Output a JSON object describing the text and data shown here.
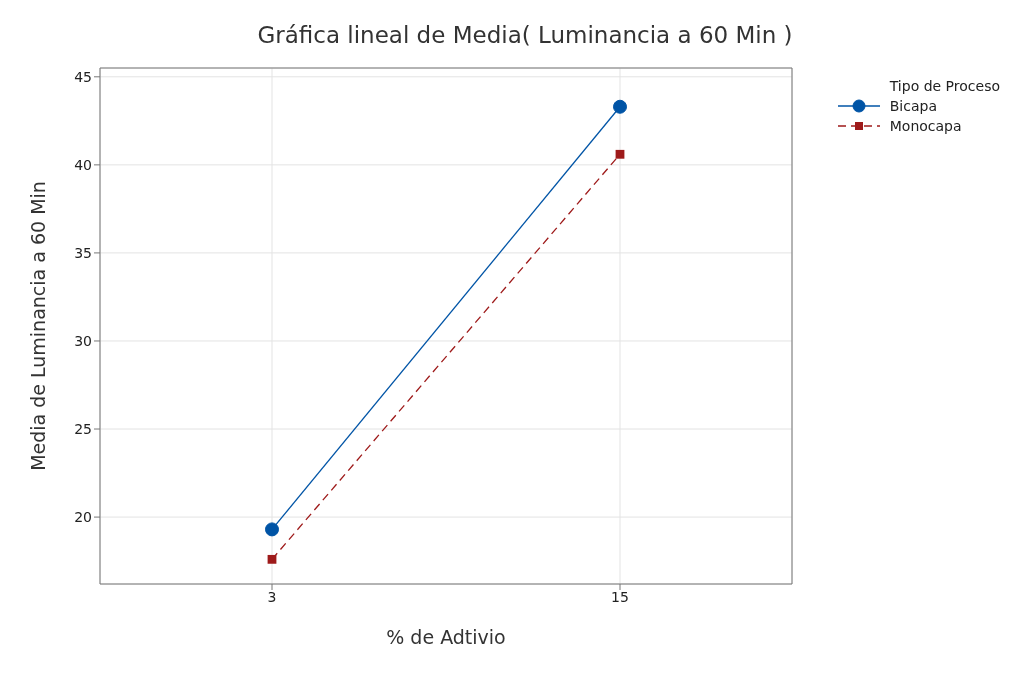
{
  "chart_data": {
    "type": "line",
    "title": "Gráfica lineal de Media( Luminancia a 60 Min )",
    "xlabel": "% de Adtivio",
    "ylabel": "Media de Luminancia a 60 Min",
    "legend_title": "Tipo de Proceso",
    "categories": [
      "3",
      "15"
    ],
    "series": [
      {
        "name": "Bicapa",
        "color": "#0054a6",
        "values": [
          19.3,
          43.3
        ],
        "marker": "circle",
        "line_style": "solid"
      },
      {
        "name": "Monocapa",
        "color": "#9e1a1a",
        "values": [
          17.6,
          40.6
        ],
        "marker": "square",
        "line_style": "dashed"
      }
    ],
    "ylim": [
      16.2,
      45.5
    ],
    "yticks": [
      20,
      25,
      30,
      35,
      40,
      45
    ],
    "grid": true,
    "legend": "top right"
  }
}
